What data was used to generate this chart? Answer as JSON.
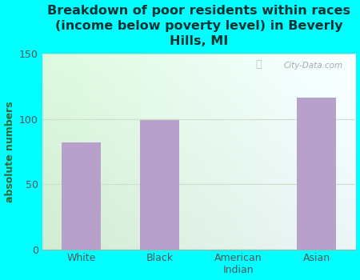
{
  "categories": [
    "White",
    "Black",
    "American\nIndian",
    "Asian"
  ],
  "values": [
    82,
    99,
    0,
    116
  ],
  "bar_color": "#b8a0cc",
  "title": "Breakdown of poor residents within races\n(income below poverty level) in Beverly\nHills, MI",
  "ylabel": "absolute numbers",
  "ylim": [
    0,
    150
  ],
  "yticks": [
    0,
    50,
    100,
    150
  ],
  "background_color": "#00ffff",
  "plot_bg_left": "#d4edda",
  "plot_bg_right": "#e8f4f8",
  "title_color": "#003333",
  "title_fontsize": 11.5,
  "ylabel_color": "#336633",
  "ylabel_fontsize": 9,
  "tick_color": "#555555",
  "grid_color": "#ccddcc",
  "watermark": "City-Data.com",
  "bar_width": 0.5
}
